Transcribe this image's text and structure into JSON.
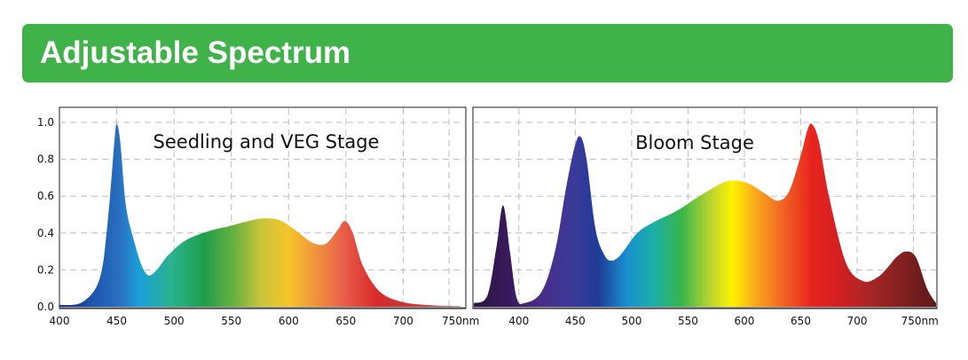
{
  "header": {
    "title": "Adjustable Spectrum"
  },
  "chart_data": [
    {
      "type": "area",
      "title": "Seedling and VEG Stage",
      "xlabel": "",
      "ylabel": "",
      "xlim": [
        400,
        750
      ],
      "ylim": [
        0,
        1.05
      ],
      "grid": true,
      "x_ticks": [
        "400",
        "450",
        "500",
        "550",
        "600",
        "650",
        "700",
        "750nm"
      ],
      "y_ticks": [
        "0.0",
        "0.2",
        "0.4",
        "0.6",
        "0.8",
        "1.0"
      ],
      "x": [
        400,
        420,
        435,
        442,
        448,
        450,
        453,
        458,
        465,
        472,
        478,
        485,
        495,
        510,
        530,
        550,
        565,
        578,
        592,
        605,
        620,
        632,
        642,
        649,
        656,
        665,
        680,
        700,
        725,
        750
      ],
      "values": [
        0.01,
        0.025,
        0.15,
        0.45,
        0.9,
        0.99,
        0.9,
        0.55,
        0.36,
        0.22,
        0.17,
        0.2,
        0.28,
        0.36,
        0.41,
        0.44,
        0.465,
        0.48,
        0.47,
        0.42,
        0.35,
        0.34,
        0.41,
        0.465,
        0.4,
        0.22,
        0.08,
        0.025,
        0.008,
        0.003
      ]
    },
    {
      "type": "area",
      "title": "Bloom Stage",
      "xlabel": "",
      "ylabel": "",
      "xlim": [
        360,
        770
      ],
      "ylim": [
        0,
        1.05
      ],
      "grid": true,
      "x_ticks": [
        "400",
        "450",
        "500",
        "550",
        "600",
        "650",
        "700",
        "750nm"
      ],
      "y_ticks": [],
      "x": [
        360,
        372,
        380,
        386,
        392,
        398,
        405,
        420,
        432,
        442,
        450,
        455,
        460,
        468,
        476,
        482,
        490,
        505,
        520,
        540,
        560,
        580,
        592,
        605,
        618,
        630,
        640,
        650,
        656,
        660,
        666,
        675,
        690,
        705,
        718,
        728,
        735,
        743,
        752,
        762,
        770
      ],
      "values": [
        0.02,
        0.06,
        0.32,
        0.55,
        0.3,
        0.05,
        0.02,
        0.08,
        0.3,
        0.65,
        0.88,
        0.92,
        0.8,
        0.42,
        0.28,
        0.25,
        0.28,
        0.4,
        0.46,
        0.52,
        0.6,
        0.67,
        0.685,
        0.665,
        0.615,
        0.575,
        0.63,
        0.82,
        0.96,
        0.99,
        0.9,
        0.6,
        0.24,
        0.14,
        0.16,
        0.22,
        0.27,
        0.3,
        0.27,
        0.1,
        0.02
      ]
    }
  ]
}
